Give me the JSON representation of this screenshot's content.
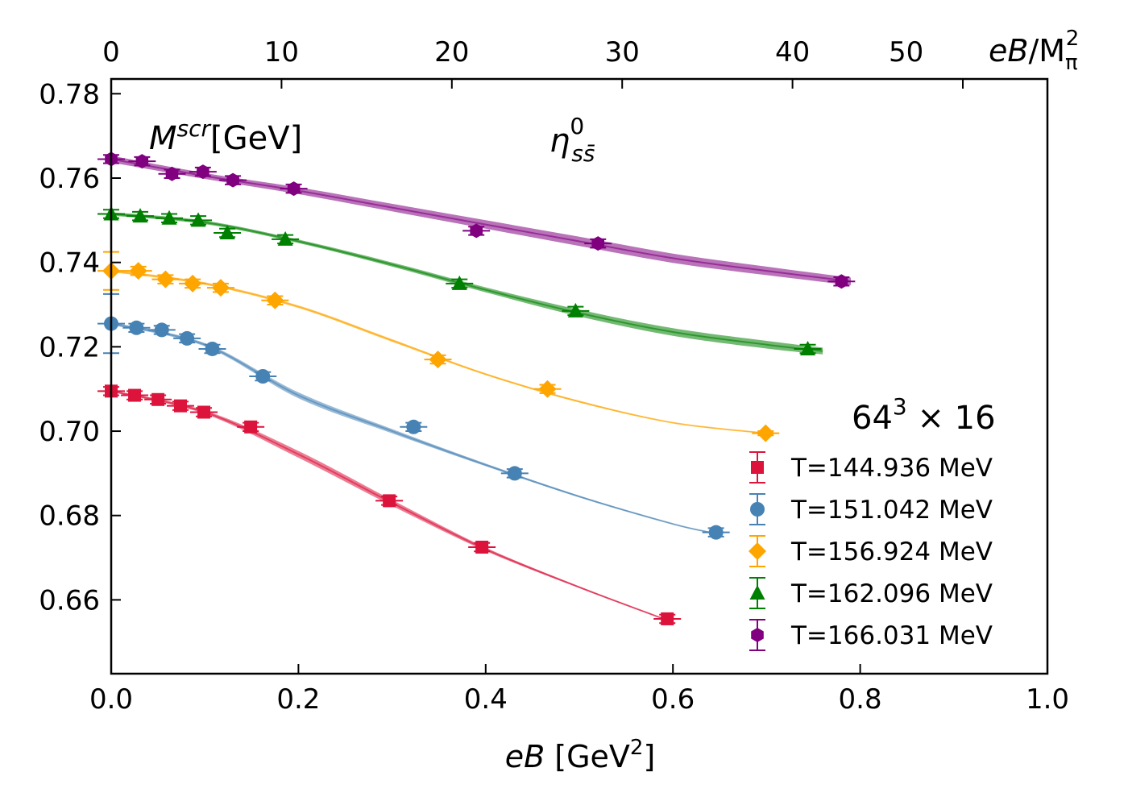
{
  "chart_data": {
    "type": "scatter",
    "title": "",
    "annotations": {
      "ylabel_inline": {
        "base": "M",
        "sup": "scr",
        "unit": "[GeV]"
      },
      "channel": {
        "base": "η",
        "sup": "0",
        "sub": "ss̄"
      },
      "lattice": {
        "base": "64",
        "sup": "3",
        "rest": " × 16"
      }
    },
    "xlabel": {
      "italic": "eB",
      "rest": " [GeV",
      "sup": "2",
      "close": "]"
    },
    "top_xlabel": {
      "italic": "eB",
      "rest": "/M",
      "sub": "π",
      "sup": "2"
    },
    "xlim": [
      0.0,
      1.0
    ],
    "ylim": [
      0.6425,
      0.7835
    ],
    "top_xlim": [
      0,
      54.966
    ],
    "xticks": [
      "0.0",
      "0.2",
      "0.4",
      "0.6",
      "0.8",
      "1.0"
    ],
    "yticks": [
      "0.66",
      "0.68",
      "0.70",
      "0.72",
      "0.74",
      "0.76",
      "0.78"
    ],
    "top_xticks": [
      "0",
      "10",
      "20",
      "30",
      "40",
      "50"
    ],
    "legend_position": "lower-right",
    "series": [
      {
        "name": "T=144.936 MeV",
        "color": "#DC143C",
        "marker": "square",
        "x": [
          0.0,
          0.025,
          0.05,
          0.074,
          0.099,
          0.149,
          0.297,
          0.396,
          0.594
        ],
        "y": [
          0.7095,
          0.7085,
          0.7075,
          0.706,
          0.7045,
          0.701,
          0.6835,
          0.6725,
          0.6555
        ],
        "yerr": [
          0.001,
          0.001,
          0.001,
          0.001,
          0.001,
          0.001,
          0.001,
          0.001,
          0.001
        ],
        "fit_x": [
          0.0,
          0.1,
          0.2,
          0.3,
          0.4,
          0.5,
          0.59
        ],
        "fit_y": [
          0.7095,
          0.7045,
          0.6945,
          0.683,
          0.672,
          0.663,
          0.6555
        ],
        "fit_band": [
          0.0002,
          0.0004,
          0.0008,
          0.0007,
          0.0004,
          0.0002,
          0.0001
        ]
      },
      {
        "name": "T=151.042 MeV",
        "color": "#4682B4",
        "marker": "circle",
        "x": [
          0.0,
          0.027,
          0.054,
          0.081,
          0.108,
          0.162,
          0.323,
          0.431,
          0.646
        ],
        "y": [
          0.7255,
          0.7245,
          0.724,
          0.722,
          0.7195,
          0.713,
          0.701,
          0.69,
          0.676
        ],
        "yerr": [
          0.007,
          0.001,
          0.001,
          0.001,
          0.001,
          0.001,
          0.001,
          0.001,
          0.001
        ],
        "fit_x": [
          0.0,
          0.1,
          0.2,
          0.3,
          0.4,
          0.5,
          0.6,
          0.64
        ],
        "fit_y": [
          0.7255,
          0.7205,
          0.7085,
          0.7,
          0.692,
          0.6845,
          0.678,
          0.676
        ],
        "fit_band": [
          0.0003,
          0.0004,
          0.0007,
          0.0005,
          0.0003,
          0.0002,
          0.0001,
          0.0001
        ]
      },
      {
        "name": "T=156.924 MeV",
        "color": "#FFA500",
        "marker": "diamond",
        "x": [
          0.0,
          0.029,
          0.058,
          0.087,
          0.117,
          0.175,
          0.349,
          0.466,
          0.699
        ],
        "y": [
          0.738,
          0.738,
          0.736,
          0.735,
          0.734,
          0.731,
          0.717,
          0.71,
          0.6995
        ],
        "yerr": [
          0.0045,
          0.001,
          0.001,
          0.001,
          0.001,
          0.001,
          0.001,
          0.001,
          0.0005
        ],
        "fit_x": [
          0.0,
          0.1,
          0.2,
          0.3,
          0.4,
          0.5,
          0.6,
          0.7
        ],
        "fit_y": [
          0.738,
          0.735,
          0.7295,
          0.7215,
          0.7135,
          0.707,
          0.702,
          0.6995
        ],
        "fit_band": [
          0.0003,
          0.0003,
          0.0003,
          0.0003,
          0.0002,
          0.0002,
          0.0001,
          0.0001
        ]
      },
      {
        "name": "T=162.096 MeV",
        "color": "#008000",
        "marker": "triangle",
        "x": [
          0.0,
          0.031,
          0.062,
          0.093,
          0.124,
          0.186,
          0.372,
          0.496,
          0.744
        ],
        "y": [
          0.7515,
          0.751,
          0.7505,
          0.75,
          0.747,
          0.7455,
          0.735,
          0.7285,
          0.7195
        ],
        "yerr": [
          0.001,
          0.001,
          0.001,
          0.001,
          0.001,
          0.001,
          0.001,
          0.001,
          0.001
        ],
        "fit_x": [
          0.0,
          0.1,
          0.2,
          0.3,
          0.4,
          0.5,
          0.6,
          0.7,
          0.76
        ],
        "fit_y": [
          0.7515,
          0.7495,
          0.745,
          0.7395,
          0.7335,
          0.728,
          0.7235,
          0.7205,
          0.719
        ],
        "fit_band": [
          0.0004,
          0.0004,
          0.0004,
          0.0005,
          0.0006,
          0.0008,
          0.0009,
          0.0009,
          0.0008
        ]
      },
      {
        "name": "T=166.031 MeV",
        "color": "#800080",
        "marker": "hexagon",
        "x": [
          0.0,
          0.033,
          0.065,
          0.098,
          0.13,
          0.195,
          0.39,
          0.52,
          0.78
        ],
        "y": [
          0.7645,
          0.764,
          0.761,
          0.7615,
          0.7595,
          0.7575,
          0.7475,
          0.7445,
          0.7355
        ],
        "yerr": [
          0.001,
          0.001,
          0.001,
          0.001,
          0.001,
          0.001,
          0.001,
          0.001,
          0.001
        ],
        "fit_x": [
          0.0,
          0.1,
          0.2,
          0.3,
          0.4,
          0.5,
          0.6,
          0.7,
          0.79
        ],
        "fit_y": [
          0.7645,
          0.7605,
          0.757,
          0.753,
          0.749,
          0.745,
          0.741,
          0.738,
          0.7355
        ],
        "fit_band": [
          0.0008,
          0.0007,
          0.0008,
          0.0009,
          0.001,
          0.0011,
          0.0011,
          0.001,
          0.0009
        ]
      }
    ]
  }
}
